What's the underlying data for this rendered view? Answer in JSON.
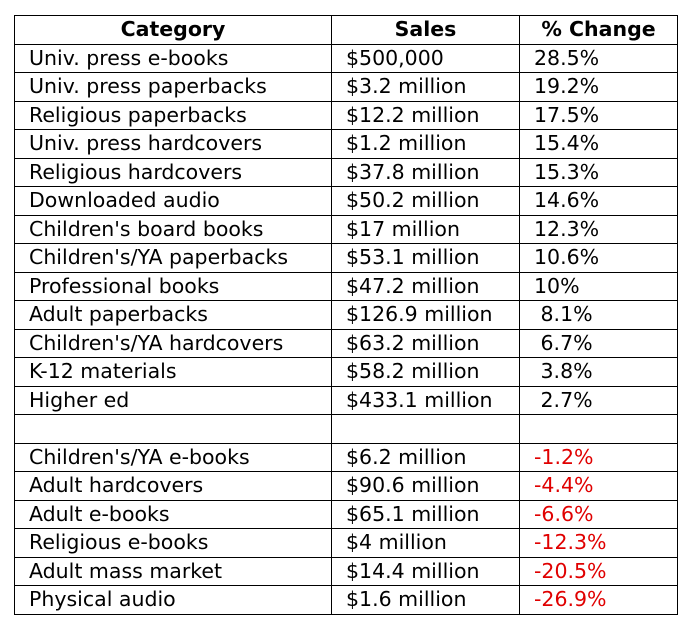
{
  "columns": [
    "Category",
    "Sales",
    "% Change"
  ],
  "colors": {
    "negative": "#e00000",
    "text": "#000000"
  },
  "rows": [
    {
      "category": "Univ. press e-books",
      "sales": "$500,000",
      "change": "28.5%"
    },
    {
      "category": "Univ. press paperbacks",
      "sales": "$3.2 million",
      "change": "19.2%"
    },
    {
      "category": "Religious paperbacks",
      "sales": "$12.2 million",
      "change": "17.5%"
    },
    {
      "category": "Univ. press hardcovers",
      "sales": "$1.2 million",
      "change": "15.4%"
    },
    {
      "category": "Religious hardcovers",
      "sales": "$37.8 million",
      "change": "15.3%"
    },
    {
      "category": "Downloaded audio",
      "sales": "$50.2 million",
      "change": "14.6%"
    },
    {
      "category": "Children's board books",
      "sales": "$17 million",
      "change": "12.3%"
    },
    {
      "category": "Children's/YA paperbacks",
      "sales": "$53.1 million",
      "change": "10.6%"
    },
    {
      "category": "Professional books",
      "sales": "$47.2 million",
      "change": "10%"
    },
    {
      "category": "Adult paperbacks",
      "sales": "$126.9 million",
      "change": " 8.1%"
    },
    {
      "category": "Children's/YA hardcovers",
      "sales": "$63.2 million",
      "change": " 6.7%"
    },
    {
      "category": "K-12 materials",
      "sales": "$58.2 million",
      "change": " 3.8%"
    },
    {
      "category": "Higher ed",
      "sales": "$433.1 million",
      "change": " 2.7%"
    },
    {
      "category": "",
      "sales": "",
      "change": ""
    },
    {
      "category": "Children's/YA e-books",
      "sales": "$6.2 million",
      "change": "-1.2%",
      "negative": true
    },
    {
      "category": "Adult hardcovers",
      "sales": "$90.6 million",
      "change": "-4.4%",
      "negative": true
    },
    {
      "category": "Adult e-books",
      "sales": "$65.1 million",
      "change": "-6.6%",
      "negative": true
    },
    {
      "category": "Religious e-books",
      "sales": "$4 million",
      "change": "-12.3%",
      "negative": true
    },
    {
      "category": "Adult mass market",
      "sales": "$14.4 million",
      "change": "-20.5%",
      "negative": true
    },
    {
      "category": "Physical audio",
      "sales": "$1.6 million",
      "change": "-26.9%",
      "negative": true
    }
  ]
}
